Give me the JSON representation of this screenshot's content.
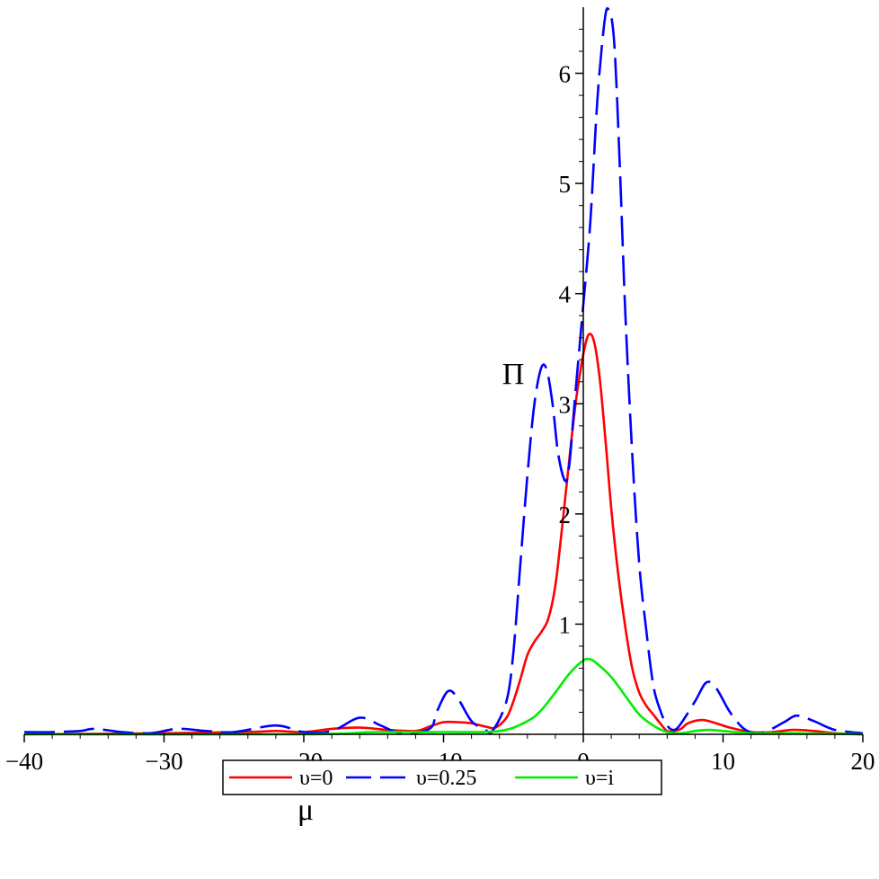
{
  "chart_data": {
    "type": "line",
    "title": "",
    "xlabel": "μ",
    "ylabel": "Π",
    "xlim": [
      -40,
      20
    ],
    "ylim": [
      0,
      6.6
    ],
    "x_ticks": [
      "−40",
      "−30",
      "−20",
      "−10",
      "0",
      "10",
      "20"
    ],
    "x_tick_values": [
      -40,
      -30,
      -20,
      -10,
      0,
      10,
      20
    ],
    "y_ticks": [
      "1",
      "2",
      "3",
      "4",
      "5",
      "6"
    ],
    "y_tick_values": [
      1,
      2,
      3,
      4,
      5,
      6
    ],
    "grid": false,
    "legend_position": "bottom-center",
    "series": [
      {
        "name": "υ=0",
        "color": "#ff0000",
        "dash": "solid",
        "points": [
          [
            -40,
            0.0
          ],
          [
            -30,
            0.01
          ],
          [
            -24,
            0.02
          ],
          [
            -22,
            0.03
          ],
          [
            -20,
            0.02
          ],
          [
            -18,
            0.05
          ],
          [
            -16,
            0.06
          ],
          [
            -14,
            0.04
          ],
          [
            -12,
            0.03
          ],
          [
            -11,
            0.07
          ],
          [
            -10,
            0.11
          ],
          [
            -9,
            0.11
          ],
          [
            -8,
            0.1
          ],
          [
            -7,
            0.07
          ],
          [
            -6.3,
            0.06
          ],
          [
            -5.5,
            0.15
          ],
          [
            -5,
            0.3
          ],
          [
            -4.5,
            0.5
          ],
          [
            -4,
            0.72
          ],
          [
            -3.5,
            0.84
          ],
          [
            -3,
            0.93
          ],
          [
            -2.5,
            1.05
          ],
          [
            -2,
            1.35
          ],
          [
            -1.5,
            1.9
          ],
          [
            -1,
            2.5
          ],
          [
            -0.5,
            3.05
          ],
          [
            0,
            3.45
          ],
          [
            0.4,
            3.63
          ],
          [
            0.8,
            3.55
          ],
          [
            1.2,
            3.2
          ],
          [
            1.6,
            2.65
          ],
          [
            2,
            2.05
          ],
          [
            2.5,
            1.45
          ],
          [
            3,
            0.98
          ],
          [
            3.5,
            0.6
          ],
          [
            4,
            0.38
          ],
          [
            4.5,
            0.26
          ],
          [
            5,
            0.18
          ],
          [
            5.5,
            0.1
          ],
          [
            6,
            0.03
          ],
          [
            6.5,
            0.03
          ],
          [
            7,
            0.05
          ],
          [
            7.5,
            0.1
          ],
          [
            8.5,
            0.13
          ],
          [
            9.5,
            0.1
          ],
          [
            10.5,
            0.06
          ],
          [
            12,
            0.02
          ],
          [
            13.5,
            0.02
          ],
          [
            15,
            0.04
          ],
          [
            16.5,
            0.03
          ],
          [
            18,
            0.01
          ],
          [
            20,
            0.0
          ]
        ]
      },
      {
        "name": "υ=0.25",
        "color": "#0000ff",
        "dash": "long-dash",
        "points": [
          [
            -40,
            0.02
          ],
          [
            -38,
            0.02
          ],
          [
            -36,
            0.03
          ],
          [
            -35,
            0.05
          ],
          [
            -33,
            0.02
          ],
          [
            -31,
            0.01
          ],
          [
            -29,
            0.05
          ],
          [
            -27,
            0.03
          ],
          [
            -25,
            0.02
          ],
          [
            -22,
            0.08
          ],
          [
            -20,
            0.02
          ],
          [
            -18,
            0.03
          ],
          [
            -16,
            0.15
          ],
          [
            -14.5,
            0.08
          ],
          [
            -13,
            0.01
          ],
          [
            -11,
            0.05
          ],
          [
            -10.5,
            0.2
          ],
          [
            -9.7,
            0.39
          ],
          [
            -9,
            0.33
          ],
          [
            -8,
            0.12
          ],
          [
            -7,
            0.04
          ],
          [
            -6.5,
            0.03
          ],
          [
            -5.5,
            0.3
          ],
          [
            -5,
            0.75
          ],
          [
            -4.5,
            1.55
          ],
          [
            -4,
            2.35
          ],
          [
            -3.5,
            3.0
          ],
          [
            -3,
            3.33
          ],
          [
            -2.6,
            3.3
          ],
          [
            -2.2,
            3.0
          ],
          [
            -1.8,
            2.55
          ],
          [
            -1.3,
            2.3
          ],
          [
            -1,
            2.45
          ],
          [
            -0.6,
            3.05
          ],
          [
            0,
            3.9
          ],
          [
            0.5,
            4.65
          ],
          [
            1,
            5.75
          ],
          [
            1.5,
            6.45
          ],
          [
            1.8,
            6.58
          ],
          [
            2.2,
            6.3
          ],
          [
            2.6,
            5.2
          ],
          [
            3,
            3.85
          ],
          [
            3.5,
            2.55
          ],
          [
            4,
            1.55
          ],
          [
            4.5,
            0.95
          ],
          [
            5,
            0.45
          ],
          [
            5.5,
            0.22
          ],
          [
            6,
            0.08
          ],
          [
            6.5,
            0.04
          ],
          [
            7,
            0.1
          ],
          [
            8,
            0.3
          ],
          [
            8.8,
            0.47
          ],
          [
            9.5,
            0.42
          ],
          [
            10.5,
            0.2
          ],
          [
            11.5,
            0.05
          ],
          [
            12.5,
            0.01
          ],
          [
            13.5,
            0.05
          ],
          [
            14.5,
            0.12
          ],
          [
            15.3,
            0.17
          ],
          [
            16.5,
            0.12
          ],
          [
            18,
            0.04
          ],
          [
            20,
            0.01
          ]
        ]
      },
      {
        "name": "υ=i",
        "color": "#00ee00",
        "dash": "solid",
        "points": [
          [
            -40,
            0.0
          ],
          [
            -20,
            0.0
          ],
          [
            -15,
            0.02
          ],
          [
            -10,
            0.02
          ],
          [
            -6,
            0.03
          ],
          [
            -4,
            0.12
          ],
          [
            -3,
            0.22
          ],
          [
            -2,
            0.38
          ],
          [
            -1,
            0.55
          ],
          [
            0,
            0.67
          ],
          [
            0.5,
            0.68
          ],
          [
            1,
            0.64
          ],
          [
            2,
            0.52
          ],
          [
            3,
            0.35
          ],
          [
            4,
            0.18
          ],
          [
            5,
            0.08
          ],
          [
            6,
            0.02
          ],
          [
            7,
            0.01
          ],
          [
            8,
            0.03
          ],
          [
            9,
            0.04
          ],
          [
            10,
            0.03
          ],
          [
            12,
            0.01
          ],
          [
            15,
            0.01
          ],
          [
            20,
            0.0
          ]
        ]
      }
    ]
  }
}
